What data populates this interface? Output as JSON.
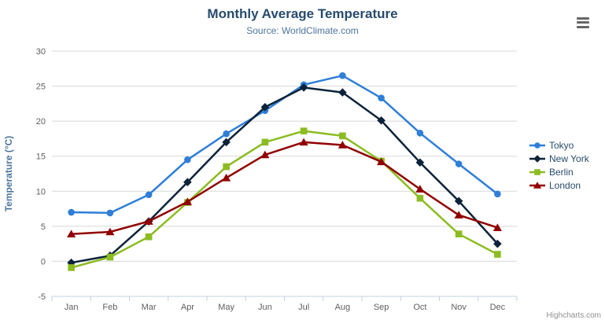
{
  "header": {
    "title": "Monthly Average Temperature",
    "subtitle": "Source: WorldClimate.com"
  },
  "export_menu": {
    "icon": "hamburger-icon",
    "tooltip_label": "Chart context menu"
  },
  "credits_label": "Highcharts.com",
  "chart_data": {
    "type": "line",
    "title": "Monthly Average Temperature",
    "subtitle": "Source: WorldClimate.com",
    "categories": [
      "Jan",
      "Feb",
      "Mar",
      "Apr",
      "May",
      "Jun",
      "Jul",
      "Aug",
      "Sep",
      "Oct",
      "Nov",
      "Dec"
    ],
    "series": [
      {
        "name": "Tokyo",
        "color": "#2f7ed8",
        "marker": "circle",
        "values": [
          7.0,
          6.9,
          9.5,
          14.5,
          18.2,
          21.5,
          25.2,
          26.5,
          23.3,
          18.3,
          13.9,
          9.6
        ]
      },
      {
        "name": "New York",
        "color": "#0d233a",
        "marker": "diamond",
        "values": [
          -0.2,
          0.8,
          5.7,
          11.3,
          17.0,
          22.0,
          24.8,
          24.1,
          20.1,
          14.1,
          8.6,
          2.5
        ]
      },
      {
        "name": "Berlin",
        "color": "#8bbc21",
        "marker": "square",
        "values": [
          -0.9,
          0.6,
          3.5,
          8.4,
          13.5,
          17.0,
          18.6,
          17.9,
          14.3,
          9.0,
          3.9,
          1.0
        ]
      },
      {
        "name": "London",
        "color": "#910000",
        "marker": "triangle",
        "values": [
          3.9,
          4.2,
          5.7,
          8.5,
          11.9,
          15.2,
          17.0,
          16.6,
          14.2,
          10.3,
          6.6,
          4.8
        ]
      }
    ],
    "xlabel": "",
    "ylabel": "Temperature (°C)",
    "ylim": [
      -5,
      30
    ],
    "yticks": [
      -5,
      0,
      5,
      10,
      15,
      20,
      25,
      30
    ],
    "grid": true,
    "legend_position": "right"
  },
  "colors": {
    "title": "#274b6d",
    "subtitle": "#4d759e",
    "axis_title": "#4d759e",
    "tick_label": "#606060",
    "axis_line": "#c0d0e0",
    "gridline": "#d8d8d8",
    "legend_text": "#274b6d",
    "credits": "#909090",
    "background": "#ffffff"
  }
}
